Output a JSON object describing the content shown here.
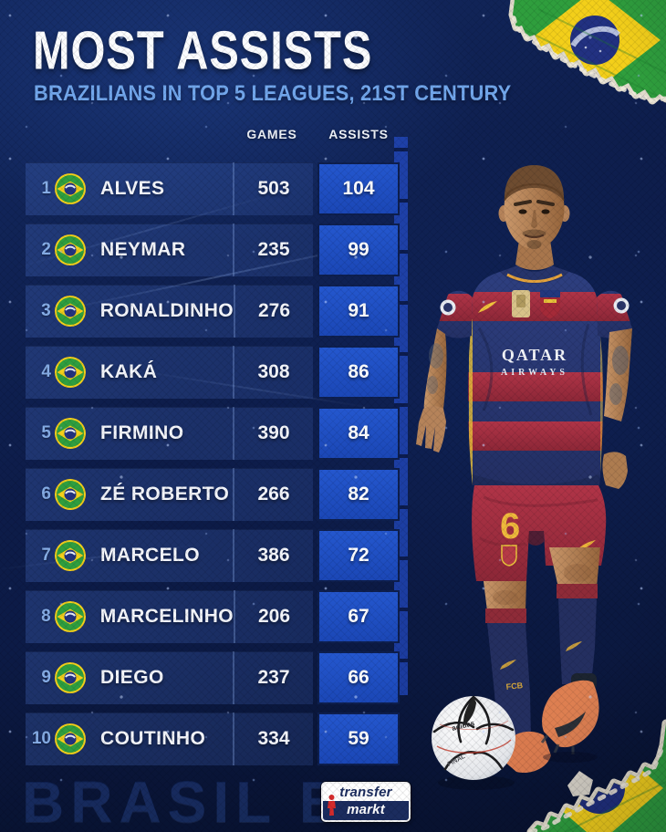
{
  "header": {
    "title": "MOST ASSISTS",
    "subtitle": "BRAZILIANS IN TOP 5 LEAGUES, 21ST CENTURY"
  },
  "table": {
    "headers": {
      "games": "GAMES",
      "assists": "ASSISTS"
    },
    "rows": [
      {
        "rank": "1",
        "flag": "brazil-flag-icon",
        "name": "ALVES",
        "games": "503",
        "assists": "104"
      },
      {
        "rank": "2",
        "flag": "brazil-flag-icon",
        "name": "NEYMAR",
        "games": "235",
        "assists": "99"
      },
      {
        "rank": "3",
        "flag": "brazil-flag-icon",
        "name": "RONALDINHO",
        "games": "276",
        "assists": "91"
      },
      {
        "rank": "4",
        "flag": "brazil-flag-icon",
        "name": "KAKÁ",
        "games": "308",
        "assists": "86"
      },
      {
        "rank": "5",
        "flag": "brazil-flag-icon",
        "name": "FIRMINO",
        "games": "390",
        "assists": "84"
      },
      {
        "rank": "6",
        "flag": "brazil-flag-icon",
        "name": "ZÉ ROBERTO",
        "games": "266",
        "assists": "82"
      },
      {
        "rank": "7",
        "flag": "brazil-flag-icon",
        "name": "MARCELO",
        "games": "386",
        "assists": "72"
      },
      {
        "rank": "8",
        "flag": "brazil-flag-icon",
        "name": "MARCELINHO",
        "games": "206",
        "assists": "67"
      },
      {
        "rank": "9",
        "flag": "brazil-flag-icon",
        "name": "DIEGO",
        "games": "237",
        "assists": "66"
      },
      {
        "rank": "10",
        "flag": "brazil-flag-icon",
        "name": "COUTINHO",
        "games": "334",
        "assists": "59"
      }
    ]
  },
  "player": {
    "sponsor_line1": "QATAR",
    "sponsor_line2": "AIRWAYS",
    "shorts_number": "6",
    "sock_text": "FCB",
    "ball_brand": "adidas",
    "ball_text": "FINAL"
  },
  "footer": {
    "logo_line1": "transfer",
    "logo_line2": "markt",
    "watermark": "BRASIL BR"
  },
  "colors": {
    "background": "#0d1c49",
    "row_band": "#2a4585",
    "assist_box": "#1e4ec6",
    "subtitle_text": "#72a7ec",
    "rank_text": "#86ade6",
    "flag_green": "#2f9e3d",
    "flag_yellow": "#f3cf1a",
    "flag_blue": "#223181"
  }
}
